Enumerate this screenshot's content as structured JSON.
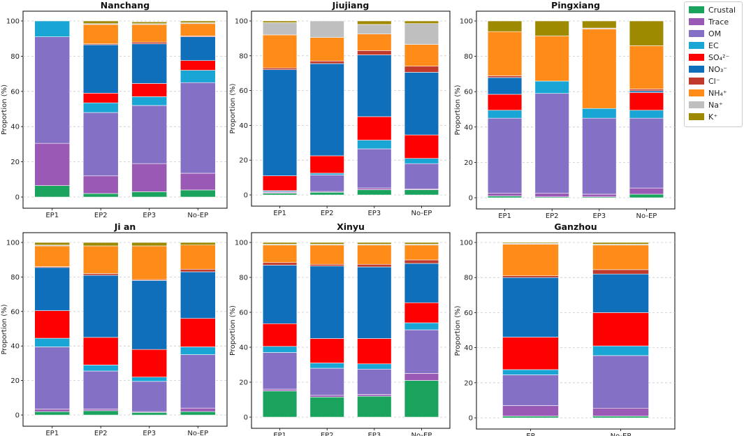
{
  "series_order": [
    "Crustal",
    "Trace",
    "OM",
    "EC",
    "SO4",
    "NO3",
    "Cl",
    "NH4",
    "Na",
    "K"
  ],
  "legend": [
    {
      "key": "Crustal",
      "label": "Crustal",
      "color": "#1aa35c"
    },
    {
      "key": "Trace",
      "label": "Trace",
      "color": "#9b59b6"
    },
    {
      "key": "OM",
      "label": "OM",
      "color": "#8470c4"
    },
    {
      "key": "EC",
      "label": "EC",
      "color": "#1aa6d4"
    },
    {
      "key": "SO4",
      "label": "SO₄²⁻",
      "color": "#ff0000"
    },
    {
      "key": "NO3",
      "label": "NO₃⁻",
      "color": "#0f6fba"
    },
    {
      "key": "Cl",
      "label": "Cl⁻",
      "color": "#c0392b"
    },
    {
      "key": "NH4",
      "label": "NH₄⁺",
      "color": "#ff8c19"
    },
    {
      "key": "Na",
      "label": "Na⁺",
      "color": "#bfbfbf"
    },
    {
      "key": "K",
      "label": "K⁺",
      "color": "#9e8a00"
    }
  ],
  "chart_data": [
    {
      "type": "bar",
      "stacked": true,
      "title": "Nanchang",
      "ylabel": "Proportion (%)",
      "ylim": [
        0,
        100
      ],
      "yticks": [
        0,
        20,
        40,
        60,
        80,
        100
      ],
      "categories": [
        "EP1",
        "EP2",
        "EP3",
        "No-EP"
      ],
      "series": [
        {
          "name": "Crustal",
          "values": [
            6.5,
            2,
            3,
            4
          ]
        },
        {
          "name": "Trace",
          "values": [
            24,
            10,
            16,
            9.5
          ]
        },
        {
          "name": "OM",
          "values": [
            60.5,
            36,
            33,
            51.5
          ]
        },
        {
          "name": "EC",
          "values": [
            9,
            5.5,
            5,
            7
          ]
        },
        {
          "name": "SO4",
          "values": [
            0,
            5.5,
            7.5,
            5.5
          ]
        },
        {
          "name": "NO3",
          "values": [
            0,
            27.5,
            22.5,
            13.5
          ]
        },
        {
          "name": "Cl",
          "values": [
            0,
            0.5,
            1,
            0.5
          ]
        },
        {
          "name": "NH4",
          "values": [
            0,
            11,
            10,
            7
          ]
        },
        {
          "name": "Na",
          "values": [
            0,
            0.5,
            0.5,
            0.5
          ]
        },
        {
          "name": "K",
          "values": [
            0,
            1.5,
            1,
            1
          ]
        }
      ]
    },
    {
      "type": "bar",
      "stacked": true,
      "title": "Jiujiang",
      "ylabel": "Proportion (%)",
      "ylim": [
        0,
        100
      ],
      "yticks": [
        0,
        20,
        40,
        60,
        80,
        100
      ],
      "categories": [
        "EP1",
        "EP2",
        "EP3",
        "No-EP"
      ],
      "series": [
        {
          "name": "Crustal",
          "values": [
            1,
            1.5,
            3,
            3
          ]
        },
        {
          "name": "Trace",
          "values": [
            0.5,
            0.5,
            1,
            0.5
          ]
        },
        {
          "name": "OM",
          "values": [
            0.5,
            9.5,
            22.5,
            14.5
          ]
        },
        {
          "name": "EC",
          "values": [
            0.5,
            1,
            5,
            3
          ]
        },
        {
          "name": "SO4",
          "values": [
            8.5,
            10,
            13.5,
            13.5
          ]
        },
        {
          "name": "NO3",
          "values": [
            61,
            53,
            35.5,
            36
          ]
        },
        {
          "name": "Cl",
          "values": [
            1,
            1.5,
            2.5,
            3.5
          ]
        },
        {
          "name": "NH4",
          "values": [
            19,
            13.5,
            9.5,
            12.5
          ]
        },
        {
          "name": "Na",
          "values": [
            7,
            9.5,
            5.5,
            12
          ]
        },
        {
          "name": "K",
          "values": [
            1,
            0,
            2,
            1.5
          ]
        }
      ]
    },
    {
      "type": "bar",
      "stacked": true,
      "title": "Pingxiang",
      "ylabel": "Proportion (%)",
      "ylim": [
        0,
        100
      ],
      "yticks": [
        0,
        20,
        40,
        60,
        80,
        100
      ],
      "categories": [
        "EP1",
        "EP2",
        "EP3",
        "No-EP"
      ],
      "series": [
        {
          "name": "Crustal",
          "values": [
            1,
            0.5,
            0.5,
            2
          ]
        },
        {
          "name": "Trace",
          "values": [
            1.5,
            2,
            1.5,
            3.5
          ]
        },
        {
          "name": "OM",
          "values": [
            42.5,
            56.5,
            43,
            39.5
          ]
        },
        {
          "name": "EC",
          "values": [
            4.5,
            7,
            5.5,
            4.5
          ]
        },
        {
          "name": "SO4",
          "values": [
            9,
            0,
            0,
            10
          ]
        },
        {
          "name": "NO3",
          "values": [
            9.5,
            0,
            0,
            1
          ]
        },
        {
          "name": "Cl",
          "values": [
            1,
            0,
            0,
            1
          ]
        },
        {
          "name": "NH4",
          "values": [
            25,
            25.5,
            45,
            24.5
          ]
        },
        {
          "name": "Na",
          "values": [
            0,
            0,
            0.5,
            0
          ]
        },
        {
          "name": "K",
          "values": [
            6,
            8.5,
            4,
            14
          ]
        }
      ]
    },
    {
      "type": "bar",
      "stacked": true,
      "title": "Ji an",
      "ylabel": "Proportion (%)",
      "ylim": [
        0,
        100
      ],
      "yticks": [
        0,
        20,
        40,
        60,
        80,
        100
      ],
      "categories": [
        "EP1",
        "EP2",
        "EP3",
        "No-EP"
      ],
      "series": [
        {
          "name": "Crustal",
          "values": [
            2,
            2.5,
            1.5,
            2
          ]
        },
        {
          "name": "Trace",
          "values": [
            1.5,
            1,
            0.5,
            2
          ]
        },
        {
          "name": "OM",
          "values": [
            36,
            22,
            17.5,
            31
          ]
        },
        {
          "name": "EC",
          "values": [
            5,
            3.5,
            2.5,
            4.5
          ]
        },
        {
          "name": "SO4",
          "values": [
            16,
            16,
            16,
            16.5
          ]
        },
        {
          "name": "NO3",
          "values": [
            25,
            36,
            40,
            27
          ]
        },
        {
          "name": "Cl",
          "values": [
            0.5,
            1,
            0.5,
            1.5
          ]
        },
        {
          "name": "NH4",
          "values": [
            12,
            16,
            19.5,
            14
          ]
        },
        {
          "name": "Na",
          "values": [
            0.5,
            0,
            0,
            0
          ]
        },
        {
          "name": "K",
          "values": [
            1.5,
            2,
            2,
            1.5
          ]
        }
      ]
    },
    {
      "type": "bar",
      "stacked": true,
      "title": "Xinyu",
      "ylabel": "Proportion (%)",
      "ylim": [
        0,
        100
      ],
      "yticks": [
        0,
        20,
        40,
        60,
        80,
        100
      ],
      "categories": [
        "EP1",
        "EP2",
        "EP3",
        "No-EP"
      ],
      "series": [
        {
          "name": "Crustal",
          "values": [
            15,
            11.5,
            12,
            21
          ]
        },
        {
          "name": "Trace",
          "values": [
            1,
            1,
            1,
            4
          ]
        },
        {
          "name": "OM",
          "values": [
            21,
            15.5,
            14.5,
            25
          ]
        },
        {
          "name": "EC",
          "values": [
            3.5,
            3,
            3,
            4
          ]
        },
        {
          "name": "SO4",
          "values": [
            13,
            14,
            14.5,
            11.5
          ]
        },
        {
          "name": "NO3",
          "values": [
            33.5,
            41.5,
            41,
            22.5
          ]
        },
        {
          "name": "Cl",
          "values": [
            1.5,
            1,
            1.5,
            2
          ]
        },
        {
          "name": "NH4",
          "values": [
            10,
            11,
            11,
            8.5
          ]
        },
        {
          "name": "Na",
          "values": [
            0.5,
            0.5,
            0.5,
            0.5
          ]
        },
        {
          "name": "K",
          "values": [
            1,
            1,
            1,
            1
          ]
        }
      ]
    },
    {
      "type": "bar",
      "stacked": true,
      "title": "Ganzhou",
      "ylabel": "Proportion (%)",
      "ylim": [
        0,
        100
      ],
      "yticks": [
        0,
        20,
        40,
        60,
        80,
        100
      ],
      "categories": [
        "EP",
        "No-EP"
      ],
      "series": [
        {
          "name": "Crustal",
          "values": [
            1,
            1
          ]
        },
        {
          "name": "Trace",
          "values": [
            6,
            4.5
          ]
        },
        {
          "name": "OM",
          "values": [
            17.5,
            30
          ]
        },
        {
          "name": "EC",
          "values": [
            3,
            5.5
          ]
        },
        {
          "name": "SO4",
          "values": [
            18.5,
            19
          ]
        },
        {
          "name": "NO3",
          "values": [
            34,
            22
          ]
        },
        {
          "name": "Cl",
          "values": [
            1,
            2.5
          ]
        },
        {
          "name": "NH4",
          "values": [
            18,
            14
          ]
        },
        {
          "name": "Na",
          "values": [
            0.5,
            0.5
          ]
        },
        {
          "name": "K",
          "values": [
            0.5,
            1
          ]
        }
      ]
    }
  ]
}
